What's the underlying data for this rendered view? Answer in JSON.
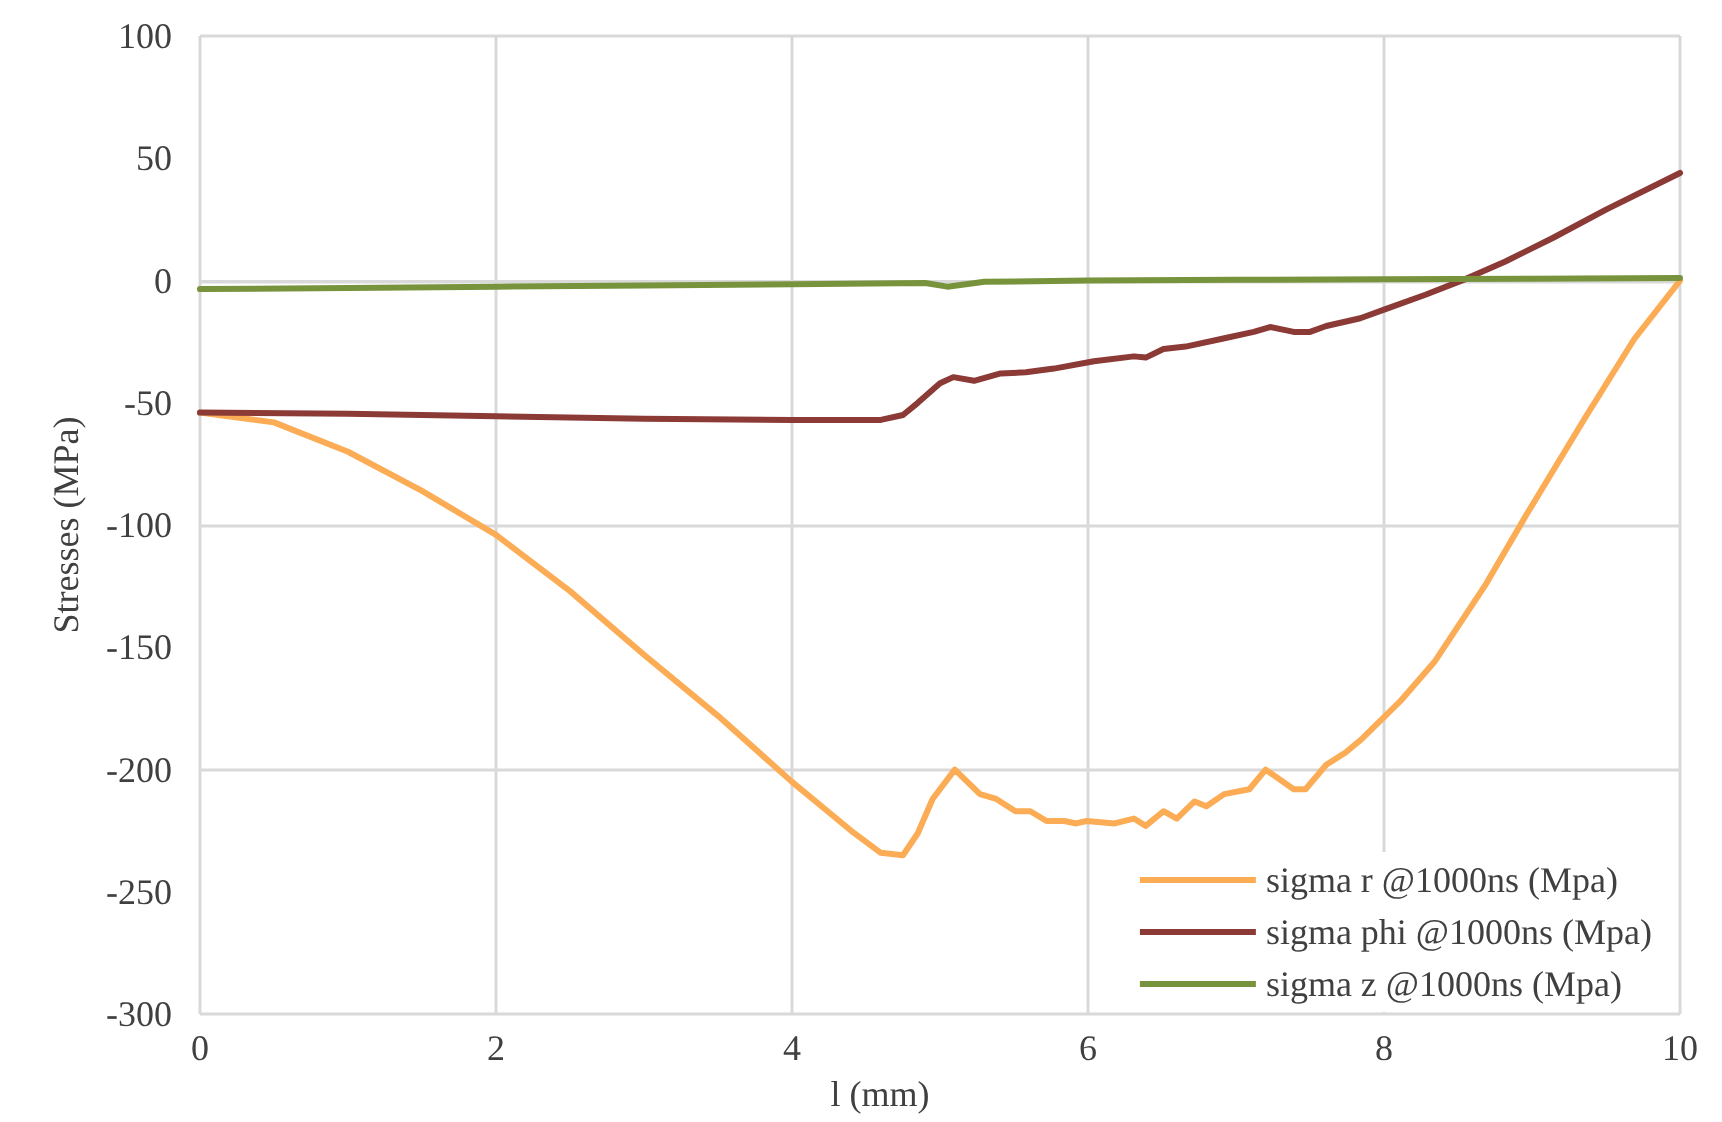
{
  "chart_data": {
    "type": "line",
    "xlabel": "l (mm)",
    "ylabel": "Stresses (MPa)",
    "xlim": [
      0,
      10
    ],
    "xticks": [
      0,
      2,
      4,
      6,
      8,
      10
    ],
    "ylim": [
      -300,
      100
    ],
    "yticks": [
      -300,
      -250,
      -200,
      -150,
      -100,
      -50,
      0,
      50,
      100
    ],
    "grid": true,
    "legend": "bottom right",
    "marker": "none",
    "line_style": "solid",
    "series": [
      {
        "name": "sigma r @1000ns (Mpa)",
        "color": "#fbac55",
        "x": [
          0,
          0.5,
          1,
          1.5,
          2,
          2.5,
          3,
          3.5,
          4,
          4.4,
          4.6,
          4.75,
          4.85,
          4.95,
          5.1,
          5.27,
          5.38,
          5.51,
          5.61,
          5.72,
          5.84,
          5.92,
          5.99,
          6.18,
          6.31,
          6.39,
          6.51,
          6.6,
          6.72,
          6.8,
          6.92,
          7.09,
          7.2,
          7.39,
          7.47,
          7.61,
          7.74,
          7.84,
          8.11,
          8.34,
          8.69,
          8.96,
          9.36,
          9.69,
          10
        ],
        "values": [
          -54,
          -58,
          -70,
          -86,
          -104,
          -127,
          -153,
          -178,
          -205,
          -225,
          -234,
          -235,
          -226,
          -212,
          -200,
          -210,
          -212,
          -217,
          -217,
          -221,
          -221,
          -222,
          -221,
          -222,
          -220,
          -223,
          -217,
          -220,
          -213,
          -215,
          -210,
          -208,
          -200,
          -208,
          -208,
          -198,
          -193,
          -188,
          -172,
          -156,
          -124,
          -96,
          -56,
          -24,
          0
        ]
      },
      {
        "name": "sigma phi @1000ns (Mpa)",
        "color": "#8b3a36",
        "x": [
          0,
          1,
          2,
          3,
          4,
          4.6,
          4.75,
          4.85,
          5.0,
          5.09,
          5.23,
          5.41,
          5.58,
          5.77,
          6.04,
          6.31,
          6.39,
          6.51,
          6.66,
          6.93,
          7.12,
          7.23,
          7.39,
          7.5,
          7.61,
          7.84,
          8.01,
          8.28,
          8.55,
          8.82,
          9.14,
          9.5,
          10
        ],
        "values": [
          -54,
          -54.5,
          -55.5,
          -56.5,
          -57,
          -57,
          -55,
          -50,
          -42,
          -39.5,
          -41,
          -38,
          -37.5,
          -36,
          -33,
          -31,
          -31.5,
          -28,
          -27,
          -23.5,
          -21,
          -19,
          -21,
          -21,
          -18.6,
          -15.4,
          -11.7,
          -5.8,
          0.6,
          7.8,
          17.4,
          29,
          44
        ]
      },
      {
        "name": "sigma z @1000ns (Mpa)",
        "color": "#77933c",
        "x": [
          0,
          1,
          2,
          3,
          4,
          4.9,
          5.05,
          5.3,
          6,
          7,
          8,
          9,
          10
        ],
        "values": [
          -3.5,
          -3,
          -2.5,
          -2,
          -1.5,
          -1,
          -2.5,
          -0.5,
          0,
          0.3,
          0.5,
          0.7,
          1
        ]
      }
    ]
  }
}
